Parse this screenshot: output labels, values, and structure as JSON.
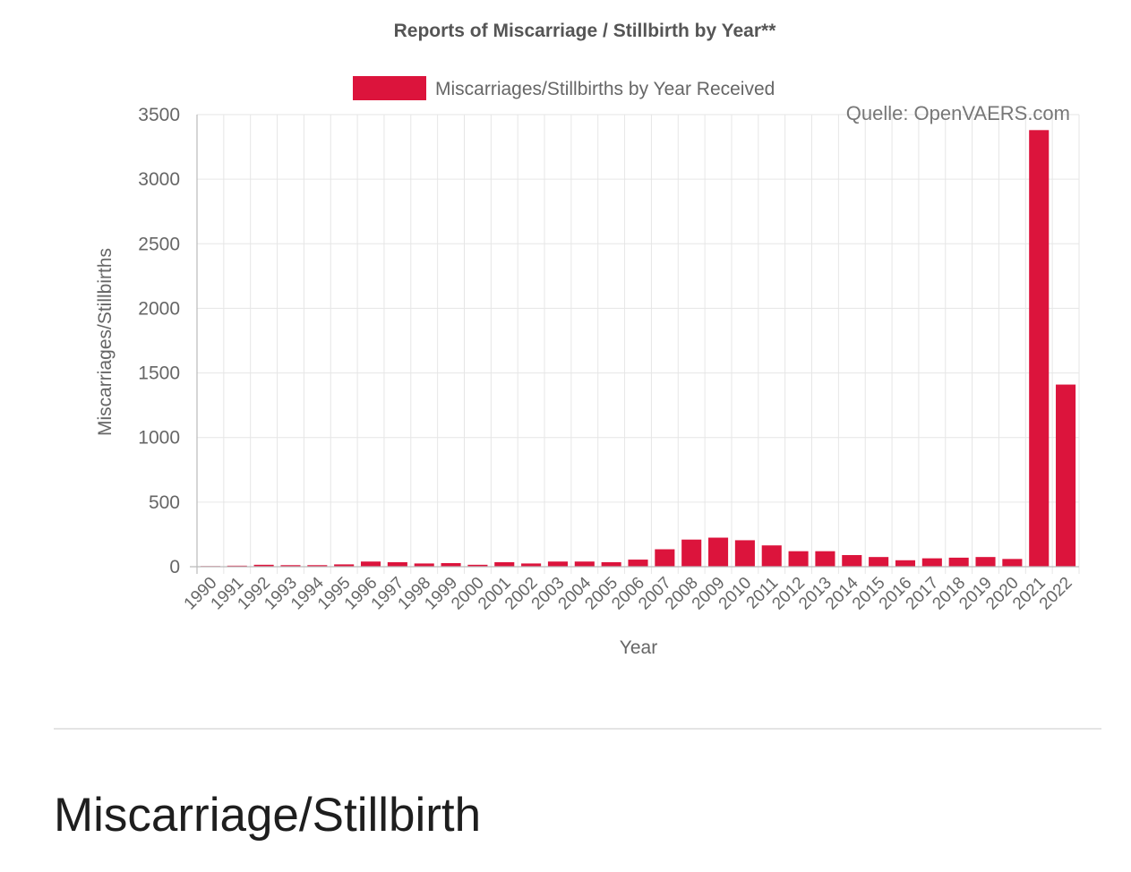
{
  "chart_data": {
    "type": "bar",
    "title": "Reports of Miscarriage / Stillbirth by Year**",
    "legend": {
      "position": "top",
      "entries": [
        "Miscarriages/Stillbirths by Year Received"
      ]
    },
    "annotation": "Quelle: OpenVAERS.com",
    "xlabel": "Year",
    "ylabel": "Miscarriages/Stillbirths",
    "ylim": [
      0,
      3500
    ],
    "yticks": [
      0,
      500,
      1000,
      1500,
      2000,
      2500,
      3000,
      3500
    ],
    "grid": true,
    "bar_color": "#dc143c",
    "categories": [
      "1990",
      "1991",
      "1992",
      "1993",
      "1994",
      "1995",
      "1996",
      "1997",
      "1998",
      "1999",
      "2000",
      "2001",
      "2002",
      "2003",
      "2004",
      "2005",
      "2006",
      "2007",
      "2008",
      "2009",
      "2010",
      "2011",
      "2012",
      "2013",
      "2014",
      "2015",
      "2016",
      "2017",
      "2018",
      "2019",
      "2020",
      "2021",
      "2022"
    ],
    "series": [
      {
        "name": "Miscarriages/Stillbirths by Year Received",
        "values": [
          5,
          8,
          15,
          12,
          12,
          18,
          40,
          35,
          25,
          28,
          15,
          35,
          25,
          40,
          40,
          35,
          55,
          135,
          210,
          225,
          205,
          165,
          120,
          120,
          90,
          75,
          50,
          65,
          70,
          75,
          60,
          3380,
          1410
        ]
      }
    ]
  },
  "page": {
    "section_heading": "Miscarriage/Stillbirth"
  }
}
